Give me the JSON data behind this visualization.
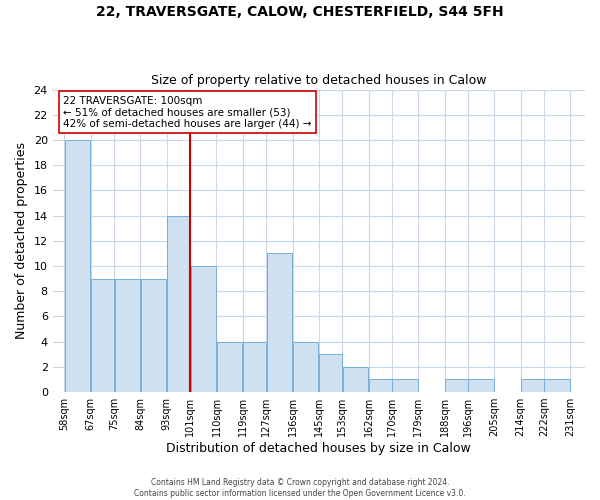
{
  "title": "22, TRAVERSGATE, CALOW, CHESTERFIELD, S44 5FH",
  "subtitle": "Size of property relative to detached houses in Calow",
  "xlabel": "Distribution of detached houses by size in Calow",
  "ylabel": "Number of detached properties",
  "bar_left_edges": [
    58,
    67,
    75,
    84,
    93,
    101,
    110,
    119,
    127,
    136,
    145,
    153,
    162,
    170,
    179,
    188,
    196,
    205,
    214,
    222
  ],
  "bar_heights": [
    20,
    9,
    9,
    9,
    14,
    10,
    4,
    4,
    11,
    4,
    3,
    2,
    1,
    1,
    0,
    1,
    1,
    0,
    1,
    1
  ],
  "bar_widths": [
    9,
    8,
    9,
    9,
    8,
    9,
    9,
    8,
    9,
    9,
    8,
    9,
    8,
    9,
    9,
    8,
    9,
    9,
    8,
    9
  ],
  "bar_color": "#cfe0f0",
  "bar_edge_color": "#7aafd4",
  "vline_x": 101,
  "vline_color": "#cc0000",
  "annotation_title": "22 TRAVERSGATE: 100sqm",
  "annotation_line1": "← 51% of detached houses are smaller (53)",
  "annotation_line2": "42% of semi-detached houses are larger (44) →",
  "annotation_box_color": "#ffffff",
  "annotation_box_edge_color": "#cc0000",
  "x_tick_labels": [
    "58sqm",
    "67sqm",
    "75sqm",
    "84sqm",
    "93sqm",
    "101sqm",
    "110sqm",
    "119sqm",
    "127sqm",
    "136sqm",
    "145sqm",
    "153sqm",
    "162sqm",
    "170sqm",
    "179sqm",
    "188sqm",
    "196sqm",
    "205sqm",
    "214sqm",
    "222sqm",
    "231sqm"
  ],
  "x_tick_positions": [
    58,
    67,
    75,
    84,
    93,
    101,
    110,
    119,
    127,
    136,
    145,
    153,
    162,
    170,
    179,
    188,
    196,
    205,
    214,
    222,
    231
  ],
  "ylim": [
    0,
    24
  ],
  "xlim": [
    54,
    236
  ],
  "yticks": [
    0,
    2,
    4,
    6,
    8,
    10,
    12,
    14,
    16,
    18,
    20,
    22,
    24
  ],
  "footer1": "Contains HM Land Registry data © Crown copyright and database right 2024.",
  "footer2": "Contains public sector information licensed under the Open Government Licence v3.0.",
  "grid_color": "#c8d8e8",
  "background_color": "#ffffff"
}
